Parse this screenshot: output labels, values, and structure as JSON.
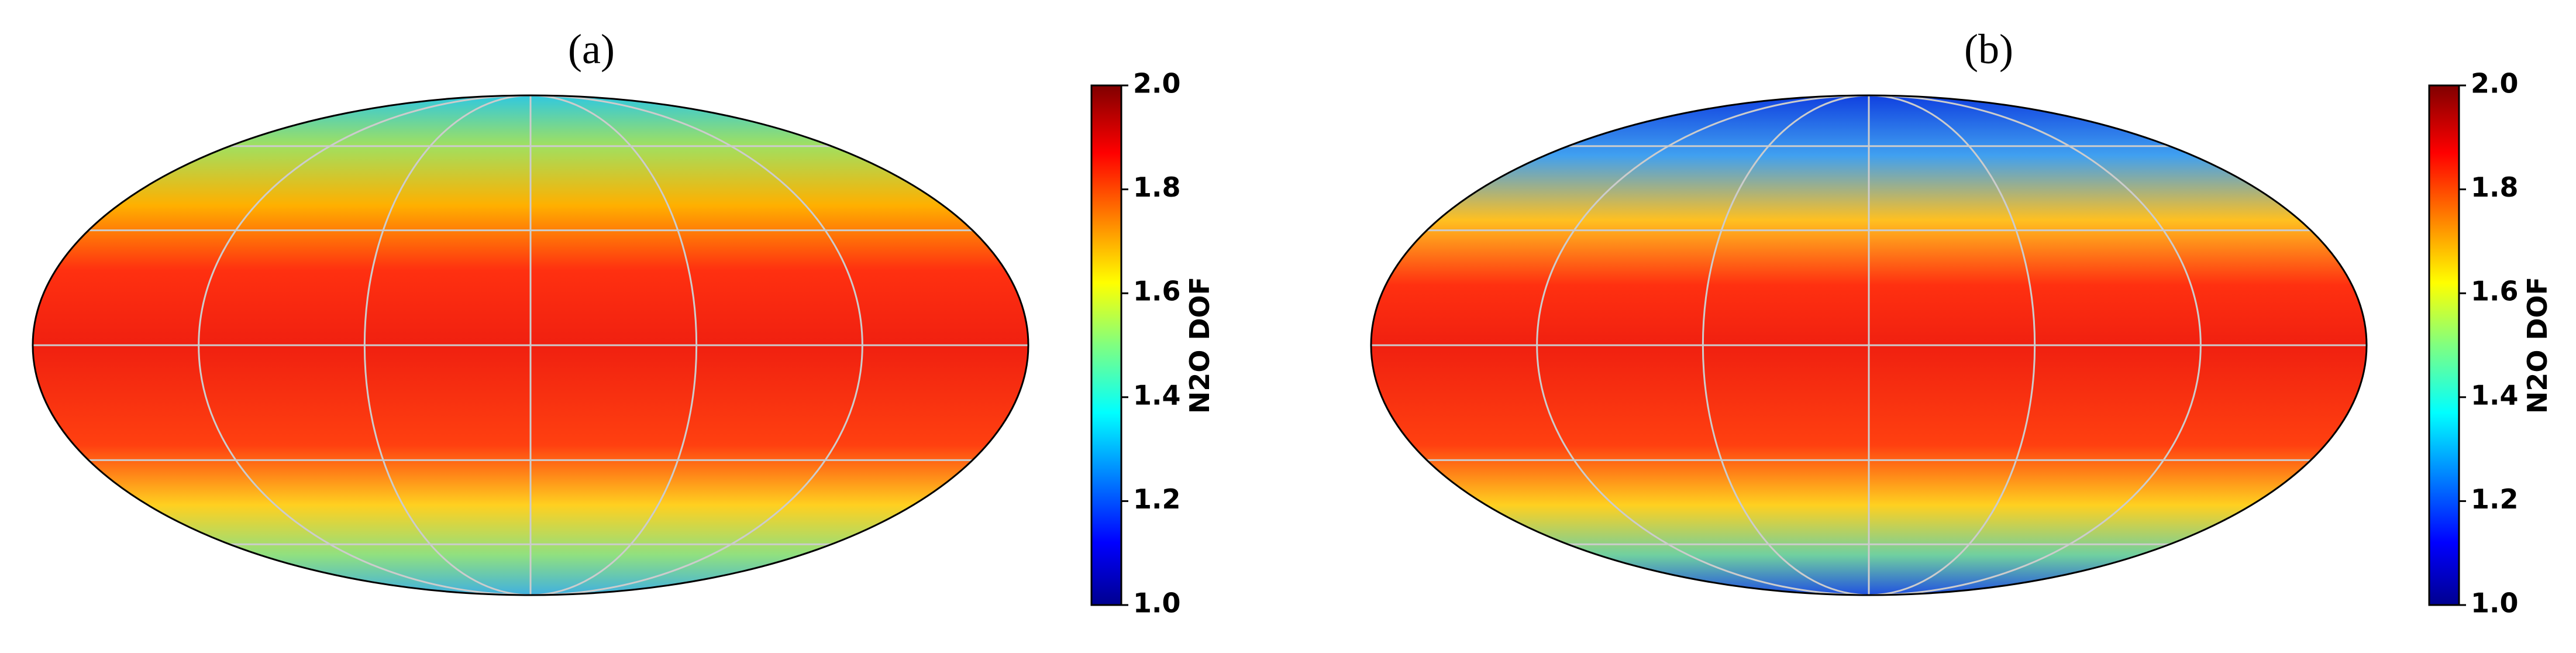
{
  "panels": [
    {
      "title": "(a)",
      "colorbar": {
        "label": "N2O DOF",
        "lim": [
          1,
          2
        ],
        "ticks": [
          {
            "value": 1,
            "label": "1.0"
          },
          {
            "value": 1.2,
            "label": "1.2"
          },
          {
            "value": 1.4,
            "label": "1.4"
          },
          {
            "value": 1.6,
            "label": "1.6"
          },
          {
            "value": 1.8,
            "label": "1.8"
          },
          {
            "value": 2,
            "label": "2.0"
          }
        ]
      }
    },
    {
      "title": "(b)",
      "colorbar": {
        "label": "N2O DOF",
        "lim": [
          1,
          2
        ],
        "ticks": [
          {
            "value": 1,
            "label": "1.0"
          },
          {
            "value": 1.2,
            "label": "1.2"
          },
          {
            "value": 1.4,
            "label": "1.4"
          },
          {
            "value": 1.6,
            "label": "1.6"
          },
          {
            "value": 1.8,
            "label": "1.8"
          },
          {
            "value": 2,
            "label": "2.0"
          }
        ]
      }
    }
  ]
}
